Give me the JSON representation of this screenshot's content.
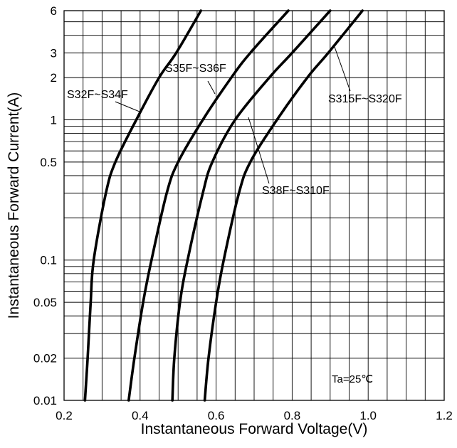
{
  "chart_data": {
    "type": "line",
    "title": "",
    "xlabel": "Instantaneous Forward Voltage(V)",
    "ylabel": "Instantaneous Forward Current(A)",
    "xlim": [
      0.2,
      1.2
    ],
    "ylim": [
      0.01,
      6
    ],
    "yscale": "log",
    "grid": true,
    "x_ticks": [
      0.2,
      0.4,
      0.6,
      0.8,
      1.0,
      1.2
    ],
    "x_tick_labels": [
      "0.2",
      "0.4",
      "0.6",
      "0.8",
      "1.0",
      "1.2"
    ],
    "y_ticks": [
      0.01,
      0.02,
      0.05,
      0.1,
      0.5,
      1,
      2,
      3,
      6
    ],
    "y_tick_labels": [
      "0.01",
      "0.02",
      "0.05",
      "0.1",
      "0.5",
      "1",
      "2",
      "3",
      "6"
    ],
    "condition_note": "Ta=25℃",
    "series": [
      {
        "name": "S32F~S34F",
        "points": [
          [
            0.255,
            0.01
          ],
          [
            0.262,
            0.02
          ],
          [
            0.27,
            0.05
          ],
          [
            0.278,
            0.1
          ],
          [
            0.31,
            0.3
          ],
          [
            0.335,
            0.5
          ],
          [
            0.39,
            1.0
          ],
          [
            0.45,
            2.0
          ],
          [
            0.495,
            3.0
          ],
          [
            0.56,
            6.0
          ]
        ]
      },
      {
        "name": "S35F~S36F",
        "points": [
          [
            0.37,
            0.01
          ],
          [
            0.385,
            0.02
          ],
          [
            0.408,
            0.05
          ],
          [
            0.43,
            0.1
          ],
          [
            0.47,
            0.3
          ],
          [
            0.5,
            0.5
          ],
          [
            0.565,
            1.0
          ],
          [
            0.64,
            2.0
          ],
          [
            0.69,
            3.0
          ],
          [
            0.79,
            6.0
          ]
        ]
      },
      {
        "name": "S38F~S310F",
        "points": [
          [
            0.485,
            0.01
          ],
          [
            0.49,
            0.02
          ],
          [
            0.505,
            0.05
          ],
          [
            0.525,
            0.1
          ],
          [
            0.565,
            0.3
          ],
          [
            0.59,
            0.5
          ],
          [
            0.65,
            1.0
          ],
          [
            0.74,
            2.0
          ],
          [
            0.8,
            3.0
          ],
          [
            0.9,
            6.0
          ]
        ]
      },
      {
        "name": "S315F~S320F",
        "points": [
          [
            0.57,
            0.01
          ],
          [
            0.58,
            0.02
          ],
          [
            0.6,
            0.05
          ],
          [
            0.62,
            0.1
          ],
          [
            0.66,
            0.3
          ],
          [
            0.69,
            0.5
          ],
          [
            0.76,
            1.0
          ],
          [
            0.84,
            2.0
          ],
          [
            0.895,
            3.0
          ],
          [
            0.985,
            6.0
          ]
        ]
      }
    ]
  }
}
